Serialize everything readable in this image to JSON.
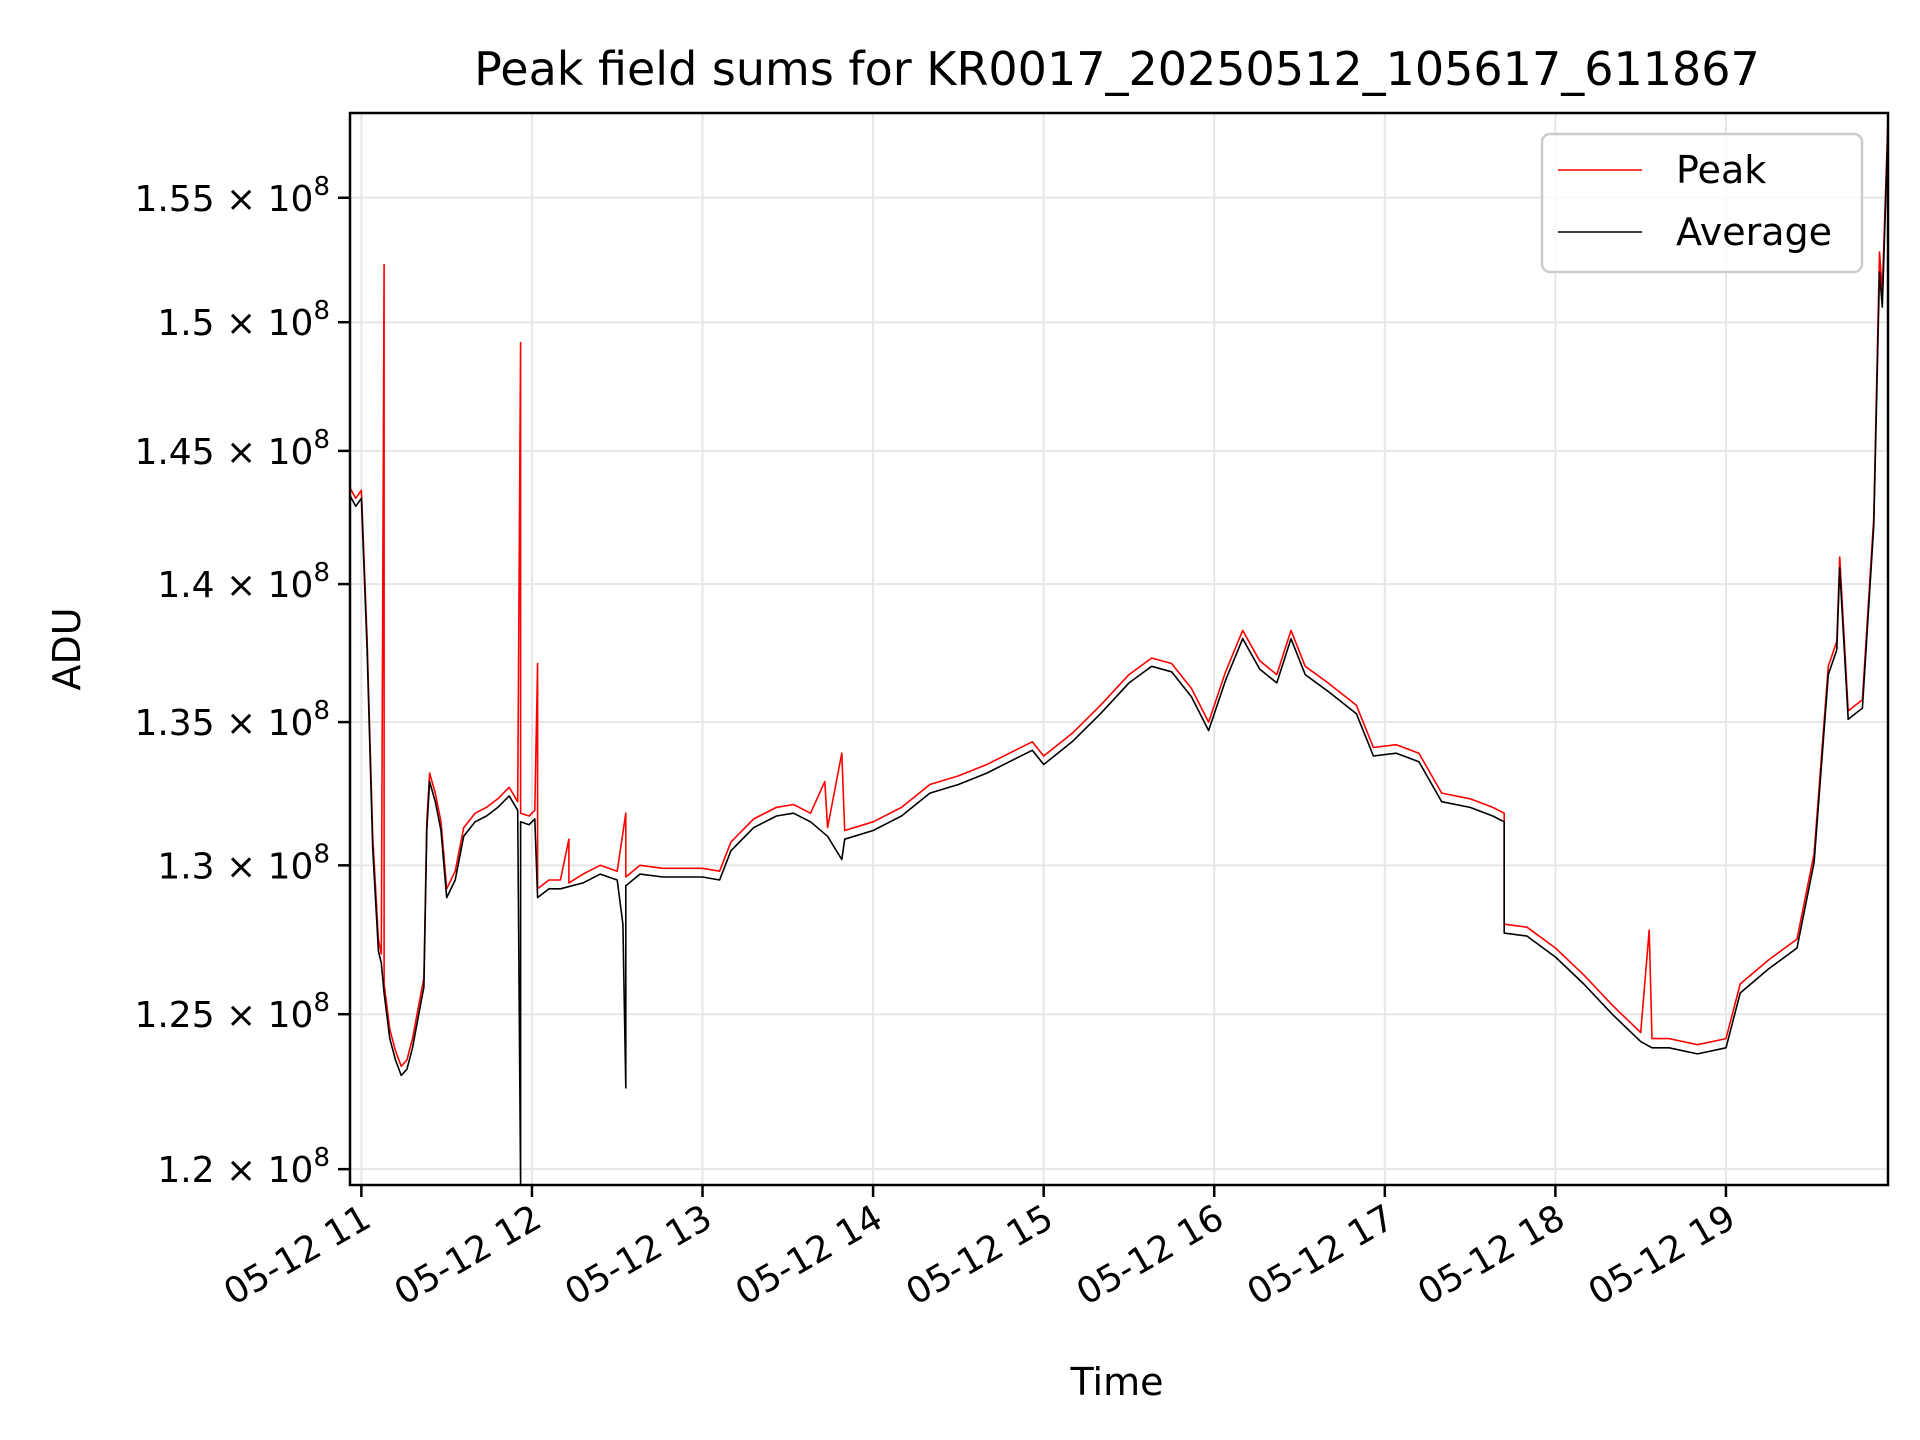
{
  "chart_data": {
    "type": "line",
    "title": "Peak field sums for KR0017_20250512_105617_611867",
    "xlabel": "Time",
    "ylabel": "ADU",
    "y_scale": "log",
    "grid": true,
    "legend_placement": "top-right",
    "xlim": [
      "05-12 10:56",
      "05-12 19:57"
    ],
    "ylim": [
      119500000,
      158500000
    ],
    "x_ticks": [
      {
        "time": "05-12 11:00",
        "label": "05-12 11"
      },
      {
        "time": "05-12 12:00",
        "label": "05-12 12"
      },
      {
        "time": "05-12 13:00",
        "label": "05-12 13"
      },
      {
        "time": "05-12 14:00",
        "label": "05-12 14"
      },
      {
        "time": "05-12 15:00",
        "label": "05-12 15"
      },
      {
        "time": "05-12 16:00",
        "label": "05-12 16"
      },
      {
        "time": "05-12 17:00",
        "label": "05-12 17"
      },
      {
        "time": "05-12 18:00",
        "label": "05-12 18"
      },
      {
        "time": "05-12 19:00",
        "label": "05-12 19"
      }
    ],
    "y_ticks": [
      {
        "value": 120000000,
        "mantissa": "1.2",
        "exponent": "8"
      },
      {
        "value": 125000000,
        "mantissa": "1.25",
        "exponent": "8"
      },
      {
        "value": 130000000,
        "mantissa": "1.3",
        "exponent": "8"
      },
      {
        "value": 135000000,
        "mantissa": "1.35",
        "exponent": "8"
      },
      {
        "value": 140000000,
        "mantissa": "1.4",
        "exponent": "8"
      },
      {
        "value": 145000000,
        "mantissa": "1.45",
        "exponent": "8"
      },
      {
        "value": 150000000,
        "mantissa": "1.5",
        "exponent": "8"
      },
      {
        "value": 155000000,
        "mantissa": "1.55",
        "exponent": "8"
      }
    ],
    "times_label": "Average",
    "series": [
      {
        "name": "Peak",
        "color": "#ff0000",
        "points": [
          [
            "05-12 10:56",
            143600000
          ],
          [
            "05-12 10:58",
            143200000
          ],
          [
            "05-12 11:00",
            143500000
          ],
          [
            "05-12 11:02",
            138000000
          ],
          [
            "05-12 11:04",
            131000000
          ],
          [
            "05-12 11:06",
            127500000
          ],
          [
            "05-12 11:07",
            127000000
          ],
          [
            "05-12 11:08",
            152300000
          ],
          [
            "05-12 11:08",
            126000000
          ],
          [
            "05-12 11:10",
            124500000
          ],
          [
            "05-12 11:12",
            123800000
          ],
          [
            "05-12 11:14",
            123300000
          ],
          [
            "05-12 11:16",
            123500000
          ],
          [
            "05-12 11:18",
            124200000
          ],
          [
            "05-12 11:20",
            125200000
          ],
          [
            "05-12 11:22",
            126200000
          ],
          [
            "05-12 11:23",
            131500000
          ],
          [
            "05-12 11:24",
            133200000
          ],
          [
            "05-12 11:26",
            132500000
          ],
          [
            "05-12 11:28",
            131500000
          ],
          [
            "05-12 11:30",
            129200000
          ],
          [
            "05-12 11:33",
            129800000
          ],
          [
            "05-12 11:36",
            131300000
          ],
          [
            "05-12 11:40",
            131800000
          ],
          [
            "05-12 11:44",
            132000000
          ],
          [
            "05-12 11:48",
            132300000
          ],
          [
            "05-12 11:52",
            132700000
          ],
          [
            "05-12 11:55",
            132200000
          ],
          [
            "05-12 11:56",
            149200000
          ],
          [
            "05-12 11:56",
            131800000
          ],
          [
            "05-12 11:59",
            131700000
          ],
          [
            "05-12 12:01",
            131900000
          ],
          [
            "05-12 12:02",
            137100000
          ],
          [
            "05-12 12:02",
            129200000
          ],
          [
            "05-12 12:06",
            129500000
          ],
          [
            "05-12 12:10",
            129500000
          ],
          [
            "05-12 12:13",
            130900000
          ],
          [
            "05-12 12:13",
            129400000
          ],
          [
            "05-12 12:18",
            129700000
          ],
          [
            "05-12 12:24",
            130000000
          ],
          [
            "05-12 12:30",
            129800000
          ],
          [
            "05-12 12:33",
            131800000
          ],
          [
            "05-12 12:33",
            129600000
          ],
          [
            "05-12 12:38",
            130000000
          ],
          [
            "05-12 12:46",
            129900000
          ],
          [
            "05-12 12:54",
            129900000
          ],
          [
            "05-12 13:00",
            129900000
          ],
          [
            "05-12 13:06",
            129800000
          ],
          [
            "05-12 13:10",
            130800000
          ],
          [
            "05-12 13:18",
            131600000
          ],
          [
            "05-12 13:26",
            132000000
          ],
          [
            "05-12 13:32",
            132100000
          ],
          [
            "05-12 13:38",
            131800000
          ],
          [
            "05-12 13:43",
            132900000
          ],
          [
            "05-12 13:44",
            131300000
          ],
          [
            "05-12 13:49",
            133900000
          ],
          [
            "05-12 13:50",
            131200000
          ],
          [
            "05-12 14:00",
            131500000
          ],
          [
            "05-12 14:10",
            132000000
          ],
          [
            "05-12 14:20",
            132800000
          ],
          [
            "05-12 14:30",
            133100000
          ],
          [
            "05-12 14:40",
            133500000
          ],
          [
            "05-12 14:50",
            134000000
          ],
          [
            "05-12 14:56",
            134300000
          ],
          [
            "05-12 15:00",
            133800000
          ],
          [
            "05-12 15:10",
            134600000
          ],
          [
            "05-12 15:20",
            135600000
          ],
          [
            "05-12 15:30",
            136700000
          ],
          [
            "05-12 15:38",
            137300000
          ],
          [
            "05-12 15:45",
            137100000
          ],
          [
            "05-12 15:52",
            136200000
          ],
          [
            "05-12 15:58",
            135000000
          ],
          [
            "05-12 16:04",
            136800000
          ],
          [
            "05-12 16:10",
            138300000
          ],
          [
            "05-12 16:16",
            137200000
          ],
          [
            "05-12 16:22",
            136700000
          ],
          [
            "05-12 16:27",
            138300000
          ],
          [
            "05-12 16:32",
            137000000
          ],
          [
            "05-12 16:40",
            136400000
          ],
          [
            "05-12 16:50",
            135600000
          ],
          [
            "05-12 16:56",
            134100000
          ],
          [
            "05-12 17:04",
            134200000
          ],
          [
            "05-12 17:12",
            133900000
          ],
          [
            "05-12 17:20",
            132500000
          ],
          [
            "05-12 17:30",
            132300000
          ],
          [
            "05-12 17:38",
            132000000
          ],
          [
            "05-12 17:42",
            131800000
          ],
          [
            "05-12 17:42",
            128000000
          ],
          [
            "05-12 17:50",
            127900000
          ],
          [
            "05-12 18:00",
            127200000
          ],
          [
            "05-12 18:10",
            126300000
          ],
          [
            "05-12 18:20",
            125300000
          ],
          [
            "05-12 18:30",
            124400000
          ],
          [
            "05-12 18:33",
            127800000
          ],
          [
            "05-12 18:34",
            124200000
          ],
          [
            "05-12 18:40",
            124200000
          ],
          [
            "05-12 18:50",
            124000000
          ],
          [
            "05-12 19:00",
            124200000
          ],
          [
            "05-12 19:05",
            126000000
          ],
          [
            "05-12 19:15",
            126800000
          ],
          [
            "05-12 19:25",
            127500000
          ],
          [
            "05-12 19:31",
            130400000
          ],
          [
            "05-12 19:36",
            137000000
          ],
          [
            "05-12 19:39",
            137900000
          ],
          [
            "05-12 19:40",
            141000000
          ],
          [
            "05-12 19:43",
            135400000
          ],
          [
            "05-12 19:48",
            135800000
          ],
          [
            "05-12 19:52",
            142500000
          ],
          [
            "05-12 19:54",
            152800000
          ],
          [
            "05-12 19:55",
            151200000
          ],
          [
            "05-12 19:57",
            158300000
          ]
        ]
      },
      {
        "name": "Average",
        "color": "#000000",
        "points": [
          [
            "05-12 10:56",
            143300000
          ],
          [
            "05-12 10:58",
            142900000
          ],
          [
            "05-12 11:00",
            143200000
          ],
          [
            "05-12 11:02",
            137600000
          ],
          [
            "05-12 11:04",
            130600000
          ],
          [
            "05-12 11:06",
            127100000
          ],
          [
            "05-12 11:07",
            126700000
          ],
          [
            "05-12 11:08",
            125700000
          ],
          [
            "05-12 11:10",
            124200000
          ],
          [
            "05-12 11:12",
            123500000
          ],
          [
            "05-12 11:14",
            123000000
          ],
          [
            "05-12 11:16",
            123200000
          ],
          [
            "05-12 11:18",
            123900000
          ],
          [
            "05-12 11:20",
            124900000
          ],
          [
            "05-12 11:22",
            125900000
          ],
          [
            "05-12 11:23",
            131200000
          ],
          [
            "05-12 11:24",
            132900000
          ],
          [
            "05-12 11:26",
            132200000
          ],
          [
            "05-12 11:28",
            131200000
          ],
          [
            "05-12 11:30",
            128900000
          ],
          [
            "05-12 11:33",
            129500000
          ],
          [
            "05-12 11:36",
            131000000
          ],
          [
            "05-12 11:40",
            131500000
          ],
          [
            "05-12 11:44",
            131700000
          ],
          [
            "05-12 11:48",
            132000000
          ],
          [
            "05-12 11:52",
            132400000
          ],
          [
            "05-12 11:55",
            131900000
          ],
          [
            "05-12 11:56",
            119500000
          ],
          [
            "05-12 11:56",
            131500000
          ],
          [
            "05-12 11:59",
            131400000
          ],
          [
            "05-12 12:01",
            131600000
          ],
          [
            "05-12 12:02",
            128900000
          ],
          [
            "05-12 12:06",
            129200000
          ],
          [
            "05-12 12:10",
            129200000
          ],
          [
            "05-12 12:18",
            129400000
          ],
          [
            "05-12 12:24",
            129700000
          ],
          [
            "05-12 12:30",
            129500000
          ],
          [
            "05-12 12:32",
            128000000
          ],
          [
            "05-12 12:33",
            122600000
          ],
          [
            "05-12 12:33",
            129300000
          ],
          [
            "05-12 12:38",
            129700000
          ],
          [
            "05-12 12:46",
            129600000
          ],
          [
            "05-12 12:54",
            129600000
          ],
          [
            "05-12 13:00",
            129600000
          ],
          [
            "05-12 13:06",
            129500000
          ],
          [
            "05-12 13:10",
            130500000
          ],
          [
            "05-12 13:18",
            131300000
          ],
          [
            "05-12 13:26",
            131700000
          ],
          [
            "05-12 13:32",
            131800000
          ],
          [
            "05-12 13:38",
            131500000
          ],
          [
            "05-12 13:44",
            131000000
          ],
          [
            "05-12 13:49",
            130200000
          ],
          [
            "05-12 13:50",
            130900000
          ],
          [
            "05-12 14:00",
            131200000
          ],
          [
            "05-12 14:10",
            131700000
          ],
          [
            "05-12 14:20",
            132500000
          ],
          [
            "05-12 14:30",
            132800000
          ],
          [
            "05-12 14:40",
            133200000
          ],
          [
            "05-12 14:50",
            133700000
          ],
          [
            "05-12 14:56",
            134000000
          ],
          [
            "05-12 15:00",
            133500000
          ],
          [
            "05-12 15:10",
            134300000
          ],
          [
            "05-12 15:20",
            135300000
          ],
          [
            "05-12 15:30",
            136400000
          ],
          [
            "05-12 15:38",
            137000000
          ],
          [
            "05-12 15:45",
            136800000
          ],
          [
            "05-12 15:52",
            135900000
          ],
          [
            "05-12 15:58",
            134700000
          ],
          [
            "05-12 16:04",
            136500000
          ],
          [
            "05-12 16:10",
            138000000
          ],
          [
            "05-12 16:16",
            136900000
          ],
          [
            "05-12 16:22",
            136400000
          ],
          [
            "05-12 16:27",
            138000000
          ],
          [
            "05-12 16:32",
            136700000
          ],
          [
            "05-12 16:40",
            136100000
          ],
          [
            "05-12 16:50",
            135300000
          ],
          [
            "05-12 16:56",
            133800000
          ],
          [
            "05-12 17:04",
            133900000
          ],
          [
            "05-12 17:12",
            133600000
          ],
          [
            "05-12 17:20",
            132200000
          ],
          [
            "05-12 17:30",
            132000000
          ],
          [
            "05-12 17:38",
            131700000
          ],
          [
            "05-12 17:42",
            131500000
          ],
          [
            "05-12 17:42",
            127700000
          ],
          [
            "05-12 17:50",
            127600000
          ],
          [
            "05-12 18:00",
            126900000
          ],
          [
            "05-12 18:10",
            126000000
          ],
          [
            "05-12 18:20",
            125000000
          ],
          [
            "05-12 18:30",
            124100000
          ],
          [
            "05-12 18:34",
            123900000
          ],
          [
            "05-12 18:40",
            123900000
          ],
          [
            "05-12 18:50",
            123700000
          ],
          [
            "05-12 19:00",
            123900000
          ],
          [
            "05-12 19:05",
            125700000
          ],
          [
            "05-12 19:15",
            126500000
          ],
          [
            "05-12 19:25",
            127200000
          ],
          [
            "05-12 19:31",
            130100000
          ],
          [
            "05-12 19:36",
            136700000
          ],
          [
            "05-12 19:39",
            137600000
          ],
          [
            "05-12 19:40",
            140600000
          ],
          [
            "05-12 19:43",
            135100000
          ],
          [
            "05-12 19:48",
            135500000
          ],
          [
            "05-12 19:52",
            142200000
          ],
          [
            "05-12 19:54",
            152000000
          ],
          [
            "05-12 19:55",
            150600000
          ],
          [
            "05-12 19:57",
            158000000
          ]
        ]
      }
    ]
  }
}
